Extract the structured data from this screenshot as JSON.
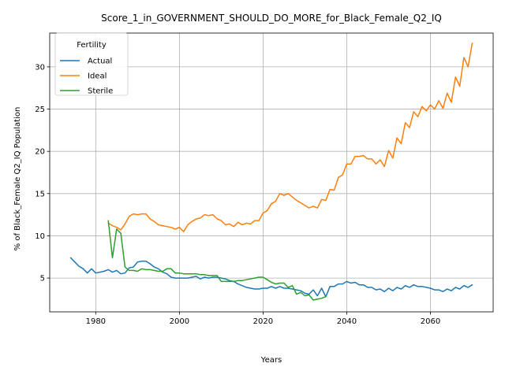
{
  "chart_data": {
    "type": "line",
    "title": "Score_1_in_GOVERNMENT_SHOULD_DO_MORE_for_Black_Female_Q2_IQ",
    "xlabel": "Years",
    "ylabel": "% of Black_Female Q2_IQ Population",
    "xlim": [
      1969,
      2075
    ],
    "ylim": [
      1.0,
      34.0
    ],
    "xticks": [
      1980,
      2000,
      2020,
      2040,
      2060
    ],
    "yticks": [
      5,
      10,
      15,
      20,
      25,
      30
    ],
    "grid": true,
    "legend": {
      "title": "Fertility",
      "placement": "top-left"
    },
    "series": [
      {
        "name": "Actual",
        "color": "#1f77b4",
        "x": [
          1974,
          1975,
          1976,
          1977,
          1978,
          1979,
          1980,
          1981,
          1982,
          1983,
          1984,
          1985,
          1986,
          1987,
          1988,
          1989,
          1990,
          1991,
          1992,
          1993,
          1994,
          1995,
          1996,
          1997,
          1998,
          1999,
          2000,
          2001,
          2002,
          2003,
          2004,
          2005,
          2006,
          2007,
          2008,
          2009,
          2010,
          2011,
          2012,
          2013,
          2014,
          2015,
          2016,
          2017,
          2018,
          2019,
          2020,
          2021,
          2022,
          2023,
          2024,
          2025,
          2026,
          2027,
          2028,
          2029,
          2030,
          2031,
          2032,
          2033,
          2034,
          2035,
          2036,
          2037,
          2038,
          2039,
          2040,
          2041,
          2042,
          2043,
          2044,
          2045,
          2046,
          2047,
          2048,
          2049,
          2050,
          2051,
          2052,
          2053,
          2054,
          2055,
          2056,
          2057,
          2058,
          2059,
          2060,
          2061,
          2062,
          2063,
          2064,
          2065,
          2066,
          2067,
          2068,
          2069,
          2070
        ],
        "values": [
          7.4,
          6.9,
          6.4,
          6.1,
          5.6,
          6.1,
          5.6,
          5.7,
          5.8,
          6.0,
          5.7,
          5.9,
          5.5,
          5.6,
          6.2,
          6.3,
          6.9,
          7.0,
          7.0,
          6.7,
          6.3,
          6.1,
          5.7,
          5.5,
          5.1,
          5.0,
          5.0,
          5.0,
          5.0,
          5.1,
          5.2,
          4.9,
          5.1,
          5.0,
          5.1,
          5.1,
          5.0,
          4.9,
          4.7,
          4.6,
          4.3,
          4.1,
          3.9,
          3.8,
          3.7,
          3.7,
          3.8,
          3.8,
          4.0,
          3.8,
          4.0,
          3.8,
          3.8,
          3.7,
          3.6,
          3.5,
          3.2,
          3.1,
          3.6,
          2.9,
          3.8,
          2.8,
          4.0,
          4.0,
          4.3,
          4.3,
          4.6,
          4.4,
          4.5,
          4.2,
          4.2,
          3.9,
          3.9,
          3.6,
          3.7,
          3.4,
          3.8,
          3.5,
          3.9,
          3.7,
          4.1,
          3.9,
          4.2,
          4.0,
          4.0,
          3.9,
          3.8,
          3.6,
          3.6,
          3.4,
          3.7,
          3.5,
          3.9,
          3.7,
          4.1,
          3.9,
          4.2
        ]
      },
      {
        "name": "Ideal",
        "color": "#ff7f0e",
        "x": [
          1983,
          1984,
          1985,
          1986,
          1987,
          1988,
          1989,
          1990,
          1991,
          1992,
          1993,
          1994,
          1995,
          1996,
          1997,
          1998,
          1999,
          2000,
          2001,
          2002,
          2003,
          2004,
          2005,
          2006,
          2007,
          2008,
          2009,
          2010,
          2011,
          2012,
          2013,
          2014,
          2015,
          2016,
          2017,
          2018,
          2019,
          2020,
          2021,
          2022,
          2023,
          2024,
          2025,
          2026,
          2027,
          2028,
          2029,
          2030,
          2031,
          2032,
          2033,
          2034,
          2035,
          2036,
          2037,
          2038,
          2039,
          2040,
          2041,
          2042,
          2043,
          2044,
          2045,
          2046,
          2047,
          2048,
          2049,
          2050,
          2051,
          2052,
          2053,
          2054,
          2055,
          2056,
          2057,
          2058,
          2059,
          2060,
          2061,
          2062,
          2063,
          2064,
          2065,
          2066,
          2067,
          2068,
          2069,
          2070
        ],
        "values": [
          11.5,
          11.2,
          11.0,
          10.7,
          11.4,
          12.3,
          12.6,
          12.5,
          12.6,
          12.6,
          12.0,
          11.7,
          11.3,
          11.2,
          11.1,
          11.0,
          10.8,
          11.0,
          10.5,
          11.3,
          11.7,
          12.0,
          12.1,
          12.5,
          12.4,
          12.5,
          12.0,
          11.8,
          11.3,
          11.4,
          11.1,
          11.6,
          11.3,
          11.5,
          11.4,
          11.8,
          11.8,
          12.7,
          13.0,
          13.8,
          14.1,
          15.0,
          14.8,
          15.0,
          14.6,
          14.2,
          13.9,
          13.6,
          13.3,
          13.5,
          13.3,
          14.3,
          14.2,
          15.5,
          15.4,
          16.9,
          17.2,
          18.5,
          18.5,
          19.4,
          19.4,
          19.5,
          19.1,
          19.1,
          18.5,
          19.0,
          18.2,
          20.1,
          19.2,
          21.6,
          20.9,
          23.4,
          22.8,
          24.7,
          24.1,
          25.3,
          24.8,
          25.5,
          25.0,
          26.0,
          25.1,
          26.9,
          25.8,
          28.8,
          27.7,
          31.1,
          30.0,
          32.8
        ]
      },
      {
        "name": "Sterile",
        "color": "#2ca02c",
        "x": [
          1983,
          1984,
          1985,
          1986,
          1987,
          1988,
          1989,
          1990,
          1991,
          1992,
          1993,
          1994,
          1995,
          1996,
          1997,
          1998,
          1999,
          2000,
          2001,
          2002,
          2003,
          2004,
          2005,
          2006,
          2007,
          2008,
          2009,
          2010,
          2011,
          2012,
          2013,
          2014,
          2015,
          2016,
          2017,
          2018,
          2019,
          2020,
          2021,
          2022,
          2023,
          2024,
          2025,
          2026,
          2027,
          2028,
          2029,
          2030,
          2031,
          2032,
          2033,
          2034,
          2035
        ],
        "values": [
          11.8,
          7.4,
          10.8,
          10.3,
          6.3,
          5.9,
          5.9,
          5.8,
          6.1,
          6.0,
          6.0,
          5.9,
          5.8,
          5.8,
          6.1,
          6.1,
          5.6,
          5.6,
          5.5,
          5.5,
          5.5,
          5.5,
          5.4,
          5.4,
          5.3,
          5.3,
          5.3,
          4.6,
          4.6,
          4.6,
          4.6,
          4.7,
          4.7,
          4.8,
          4.9,
          5.0,
          5.1,
          5.1,
          4.8,
          4.5,
          4.3,
          4.4,
          4.4,
          3.9,
          4.1,
          3.1,
          3.3,
          2.9,
          3.0,
          2.4,
          2.5,
          2.6,
          2.8
        ]
      }
    ]
  }
}
